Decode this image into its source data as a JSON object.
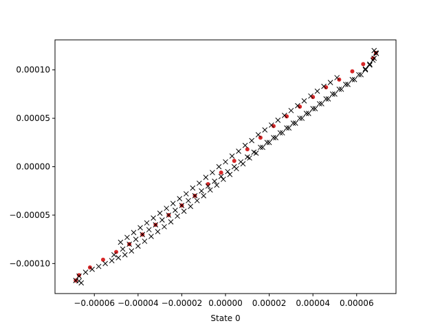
{
  "chart_data": {
    "type": "scatter",
    "xlabel": "State 0",
    "ylabel": "",
    "xlim": [
      -7.8e-05,
      7.8e-05
    ],
    "ylim": [
      -0.000131,
      0.000131
    ],
    "grid": false,
    "x_ticks": [
      {
        "value": -6e-05,
        "label": "−0.00006"
      },
      {
        "value": -4e-05,
        "label": "−0.00004"
      },
      {
        "value": -2e-05,
        "label": "−0.00002"
      },
      {
        "value": 0.0,
        "label": "0.00000"
      },
      {
        "value": 2e-05,
        "label": "0.00002"
      },
      {
        "value": 4e-05,
        "label": "0.00004"
      },
      {
        "value": 6e-05,
        "label": "0.00006"
      }
    ],
    "y_ticks": [
      {
        "value": -0.0001,
        "label": "−0.00010"
      },
      {
        "value": -5e-05,
        "label": "−0.00005"
      },
      {
        "value": 0.0,
        "label": "0.00000"
      },
      {
        "value": 5e-05,
        "label": "0.00005"
      },
      {
        "value": 0.0001,
        "label": "0.00010"
      }
    ],
    "series": [
      {
        "marker": "dot",
        "color": "#d62728",
        "points": [
          [
            -6.85e-05,
            -0.0001175
          ],
          [
            -6.7e-05,
            -0.000112
          ],
          [
            -6.2e-05,
            -0.000104
          ],
          [
            -5.6e-05,
            -9.6e-05
          ],
          [
            -5e-05,
            -8.8e-05
          ],
          [
            -4.4e-05,
            -8e-05
          ],
          [
            -3.8e-05,
            -7e-05
          ],
          [
            -3.2e-05,
            -6e-05
          ],
          [
            -2.6e-05,
            -5e-05
          ],
          [
            -2e-05,
            -4e-05
          ],
          [
            -1.4e-05,
            -3e-05
          ],
          [
            -8e-06,
            -1.8e-05
          ],
          [
            -2e-06,
            -6e-06
          ],
          [
            4e-06,
            6e-06
          ],
          [
            1e-05,
            1.8e-05
          ],
          [
            1.6e-05,
            3e-05
          ],
          [
            2.2e-05,
            4.2e-05
          ],
          [
            2.8e-05,
            5.2e-05
          ],
          [
            3.4e-05,
            6.2e-05
          ],
          [
            4e-05,
            7.2e-05
          ],
          [
            4.6e-05,
            8.2e-05
          ],
          [
            5.2e-05,
            9e-05
          ],
          [
            5.8e-05,
            9.85e-05
          ],
          [
            6.3e-05,
            0.000106
          ],
          [
            6.75e-05,
            0.000112
          ],
          [
            6.88e-05,
            0.0001175
          ]
        ]
      },
      {
        "marker": "x",
        "color": "#000000",
        "points": [
          [
            -6.85e-05,
            -0.0001175
          ],
          [
            -6.7e-05,
            -0.000113
          ],
          [
            -6.4e-05,
            -0.000109
          ],
          [
            -6.1e-05,
            -0.000106
          ],
          [
            -5.8e-05,
            -0.000103
          ],
          [
            -5.5e-05,
            -0.0001
          ],
          [
            -5.2e-05,
            -9.7e-05
          ],
          [
            -4.9e-05,
            -9.4e-05
          ],
          [
            -4.6e-05,
            -9.1e-05
          ],
          [
            -4.3e-05,
            -8.7e-05
          ],
          [
            -4e-05,
            -8.2e-05
          ],
          [
            -3.7e-05,
            -7.7e-05
          ],
          [
            -3.4e-05,
            -7.2e-05
          ],
          [
            -3.1e-05,
            -6.7e-05
          ],
          [
            -2.8e-05,
            -6.2e-05
          ],
          [
            -2.5e-05,
            -5.7e-05
          ],
          [
            -2.2e-05,
            -5.1e-05
          ],
          [
            -1.9e-05,
            -4.6e-05
          ],
          [
            -1.6e-05,
            -4.1e-05
          ],
          [
            -1.3e-05,
            -3.5e-05
          ],
          [
            -1e-05,
            -3e-05
          ],
          [
            -7e-06,
            -2.4e-05
          ],
          [
            -4e-06,
            -1.9e-05
          ],
          [
            -1e-06,
            -1.3e-05
          ],
          [
            2e-06,
            -8e-06
          ],
          [
            5e-06,
            -2e-06
          ],
          [
            8e-06,
            3e-06
          ],
          [
            1.1e-05,
            9e-06
          ],
          [
            1.4e-05,
            1.4e-05
          ],
          [
            1.7e-05,
            2e-05
          ],
          [
            2e-05,
            2.5e-05
          ],
          [
            2.3e-05,
            3e-05
          ],
          [
            2.6e-05,
            3.5e-05
          ],
          [
            2.9e-05,
            4e-05
          ],
          [
            3.2e-05,
            4.5e-05
          ],
          [
            3.5e-05,
            5e-05
          ],
          [
            3.8e-05,
            5.5e-05
          ],
          [
            4.1e-05,
            6e-05
          ],
          [
            4.4e-05,
            6.5e-05
          ],
          [
            4.7e-05,
            7e-05
          ],
          [
            5e-05,
            7.5e-05
          ],
          [
            5.3e-05,
            8e-05
          ],
          [
            5.6e-05,
            8.5e-05
          ],
          [
            5.9e-05,
            9e-05
          ],
          [
            6.2e-05,
            9.5e-05
          ],
          [
            6.4e-05,
            0.0001
          ],
          [
            6.6e-05,
            0.000105
          ],
          [
            6.75e-05,
            0.00011
          ],
          [
            6.88e-05,
            0.0001175
          ],
          [
            5.1e-05,
            9.2e-05
          ],
          [
            4.8e-05,
            8.7e-05
          ],
          [
            4.5e-05,
            8.3e-05
          ],
          [
            4.2e-05,
            7.8e-05
          ],
          [
            3.9e-05,
            7.3e-05
          ],
          [
            3.6e-05,
            6.8e-05
          ],
          [
            3.3e-05,
            6.3e-05
          ],
          [
            3e-05,
            5.8e-05
          ],
          [
            2.7e-05,
            5.3e-05
          ],
          [
            2.4e-05,
            4.8e-05
          ],
          [
            2.1e-05,
            4.3e-05
          ],
          [
            1.8e-05,
            3.8e-05
          ],
          [
            1.5e-05,
            3.3e-05
          ],
          [
            1.2e-05,
            2.7e-05
          ],
          [
            9e-06,
            2.2e-05
          ],
          [
            6e-06,
            1.6e-05
          ],
          [
            3e-06,
            1.1e-05
          ],
          [
            0.0,
            5e-06
          ],
          [
            -3e-06,
            0.0
          ],
          [
            -6e-06,
            -6e-06
          ],
          [
            -9e-06,
            -1.1e-05
          ],
          [
            -1.2e-05,
            -1.7e-05
          ],
          [
            -1.5e-05,
            -2.2e-05
          ],
          [
            -1.8e-05,
            -2.8e-05
          ],
          [
            -2.1e-05,
            -3.3e-05
          ],
          [
            -2.4e-05,
            -3.8e-05
          ],
          [
            -2.7e-05,
            -4.3e-05
          ],
          [
            -3e-05,
            -4.8e-05
          ],
          [
            -3.3e-05,
            -5.3e-05
          ],
          [
            -3.6e-05,
            -5.8e-05
          ],
          [
            -3.9e-05,
            -6.3e-05
          ],
          [
            -4.2e-05,
            -6.8e-05
          ],
          [
            -4.5e-05,
            -7.3e-05
          ],
          [
            -4.8e-05,
            -7.8e-05
          ],
          [
            -5.1e-05,
            -9.1e-05
          ],
          [
            -4.7e-05,
            -8.5e-05
          ],
          [
            -4.4e-05,
            -8e-05
          ],
          [
            -4.1e-05,
            -7.5e-05
          ],
          [
            -3.8e-05,
            -7e-05
          ],
          [
            -3.5e-05,
            -6.5e-05
          ],
          [
            -3.2e-05,
            -6e-05
          ],
          [
            -2.9e-05,
            -5.5e-05
          ],
          [
            -2.6e-05,
            -5e-05
          ],
          [
            -2.3e-05,
            -4.5e-05
          ],
          [
            -2e-05,
            -4e-05
          ],
          [
            -1.7e-05,
            -3.5e-05
          ],
          [
            -1.4e-05,
            -3e-05
          ],
          [
            -1.1e-05,
            -2.5e-05
          ],
          [
            -8e-06,
            -2e-05
          ],
          [
            -5e-06,
            -1.5e-05
          ],
          [
            -2e-06,
            -1e-05
          ],
          [
            1e-06,
            -5e-06
          ],
          [
            4e-06,
            0.0
          ],
          [
            7e-06,
            5e-06
          ],
          [
            1e-05,
            1e-05
          ],
          [
            1.3e-05,
            1.5e-05
          ],
          [
            1.6e-05,
            2e-05
          ],
          [
            1.9e-05,
            2.5e-05
          ],
          [
            2.2e-05,
            3e-05
          ],
          [
            2.5e-05,
            3.5e-05
          ],
          [
            2.8e-05,
            4e-05
          ],
          [
            3.1e-05,
            4.5e-05
          ],
          [
            3.4e-05,
            5e-05
          ],
          [
            3.7e-05,
            5.5e-05
          ],
          [
            4e-05,
            6e-05
          ],
          [
            4.3e-05,
            6.5e-05
          ],
          [
            4.6e-05,
            7e-05
          ],
          [
            4.9e-05,
            7.5e-05
          ],
          [
            5.2e-05,
            8e-05
          ],
          [
            5.5e-05,
            8.5e-05
          ],
          [
            5.8e-05,
            9e-05
          ],
          [
            6.1e-05,
            9.5e-05
          ],
          [
            6.4e-05,
            0.000101
          ],
          [
            6.6e-05,
            0.000106
          ],
          [
            6.8e-05,
            0.000112
          ],
          [
            6.9e-05,
            0.000117
          ],
          [
            6.8e-05,
            0.00012
          ],
          [
            -6.6e-05,
            -0.00012
          ],
          [
            -6.7e-05,
            -0.000118
          ]
        ]
      }
    ]
  }
}
